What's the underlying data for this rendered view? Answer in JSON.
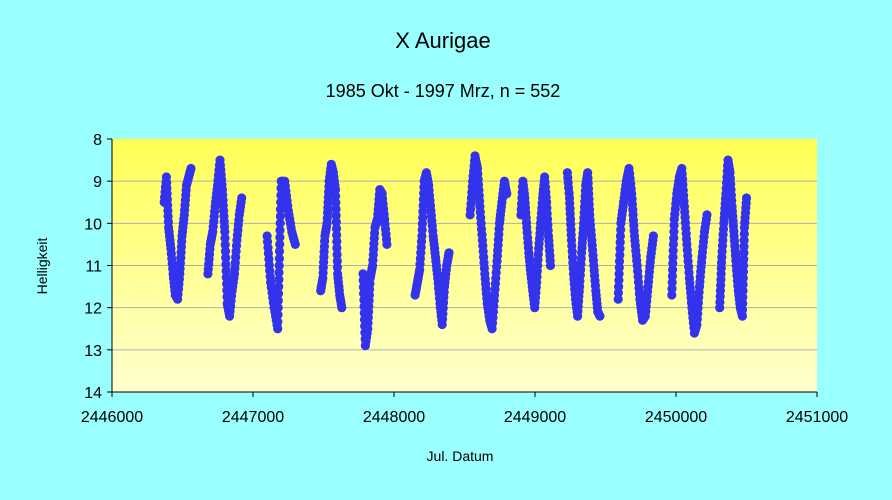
{
  "colors": {
    "page_background": "#99ffff",
    "plot_gradient_top": "#ffff55",
    "plot_gradient_bottom": "#ffffd0",
    "marker": "#3333ee",
    "grid": "#b0b0b0"
  },
  "chart_data": {
    "type": "scatter",
    "title": "X Aurigae",
    "subtitle": "1985 Okt - 1997 Mrz, n = 552",
    "xlabel": "Jul. Datum",
    "ylabel": "Helligkeit",
    "xlim": [
      2446000,
      2451000
    ],
    "ylim": [
      8,
      14
    ],
    "y_inverted": true,
    "xticks": [
      2446000,
      2447000,
      2448000,
      2449000,
      2450000,
      2451000
    ],
    "yticks": [
      8,
      9,
      10,
      11,
      12,
      13,
      14
    ],
    "grid": "horizontal",
    "legend": "none",
    "clusters": [
      {
        "x_from": 2446370,
        "x_to": 2446560,
        "values": [
          9.5,
          8.9,
          10.1,
          10.6,
          11.2,
          11.7,
          11.8,
          11.2,
          10.3,
          9.8,
          9.1,
          8.9,
          8.7
        ]
      },
      {
        "x_from": 2446680,
        "x_to": 2446920,
        "values": [
          11.2,
          10.5,
          10.2,
          9.6,
          9.1,
          8.5,
          9.2,
          10.2,
          11.9,
          12.2,
          11.6,
          11.2,
          10.4,
          9.8,
          9.4
        ]
      },
      {
        "x_from": 2447100,
        "x_to": 2447300,
        "values": [
          10.3,
          11.4,
          12.0,
          12.5,
          9.0,
          9.0,
          9.7,
          10.2,
          10.5
        ]
      },
      {
        "x_from": 2447480,
        "x_to": 2447630,
        "values": [
          11.6,
          11.3,
          10.3,
          10.0,
          9.0,
          8.6,
          8.8,
          9.2,
          11.2,
          11.7,
          12.0
        ]
      },
      {
        "x_from": 2447780,
        "x_to": 2447950,
        "values": [
          11.2,
          12.9,
          12.5,
          11.3,
          11.0,
          10.1,
          9.9,
          9.2,
          9.3,
          9.9,
          10.5
        ]
      },
      {
        "x_from": 2448150,
        "x_to": 2448390,
        "values": [
          11.7,
          11.4,
          11.1,
          10.3,
          9.0,
          8.8,
          9.1,
          9.7,
          10.3,
          10.8,
          11.3,
          11.9,
          12.4,
          11.5,
          11.0,
          10.7
        ]
      },
      {
        "x_from": 2448540,
        "x_to": 2448800,
        "values": [
          9.8,
          9.0,
          8.4,
          8.7,
          9.6,
          10.4,
          11.2,
          11.9,
          12.3,
          12.5,
          11.7,
          10.9,
          10.0,
          9.5,
          9.0,
          9.3
        ]
      },
      {
        "x_from": 2448900,
        "x_to": 2449110,
        "values": [
          9.8,
          9.0,
          9.4,
          10.1,
          10.7,
          11.2,
          11.6,
          12.0,
          11.4,
          10.6,
          10.0,
          9.4,
          8.9,
          9.5,
          10.3,
          11.0
        ]
      },
      {
        "x_from": 2449230,
        "x_to": 2449460,
        "values": [
          8.8,
          9.4,
          10.4,
          11.2,
          11.8,
          12.2,
          11.5,
          10.7,
          10.0,
          9.1,
          8.8,
          9.8,
          10.4,
          11.0,
          11.6,
          12.1,
          12.2
        ]
      },
      {
        "x_from": 2449590,
        "x_to": 2449840,
        "values": [
          11.8,
          10.0,
          9.5,
          9.0,
          8.7,
          9.3,
          10.3,
          11.0,
          11.8,
          12.3,
          12.2,
          11.5,
          10.8,
          10.3
        ]
      },
      {
        "x_from": 2449970,
        "x_to": 2450220,
        "values": [
          11.7,
          9.9,
          9.3,
          8.9,
          8.7,
          9.6,
          10.5,
          11.3,
          12.0,
          12.6,
          12.4,
          11.5,
          10.8,
          10.2,
          9.8
        ]
      },
      {
        "x_from": 2450310,
        "x_to": 2450500,
        "values": [
          12.0,
          10.8,
          10.0,
          9.3,
          8.5,
          8.8,
          9.6,
          10.3,
          11.0,
          11.6,
          12.0,
          12.2,
          10.1,
          9.4
        ]
      }
    ]
  }
}
